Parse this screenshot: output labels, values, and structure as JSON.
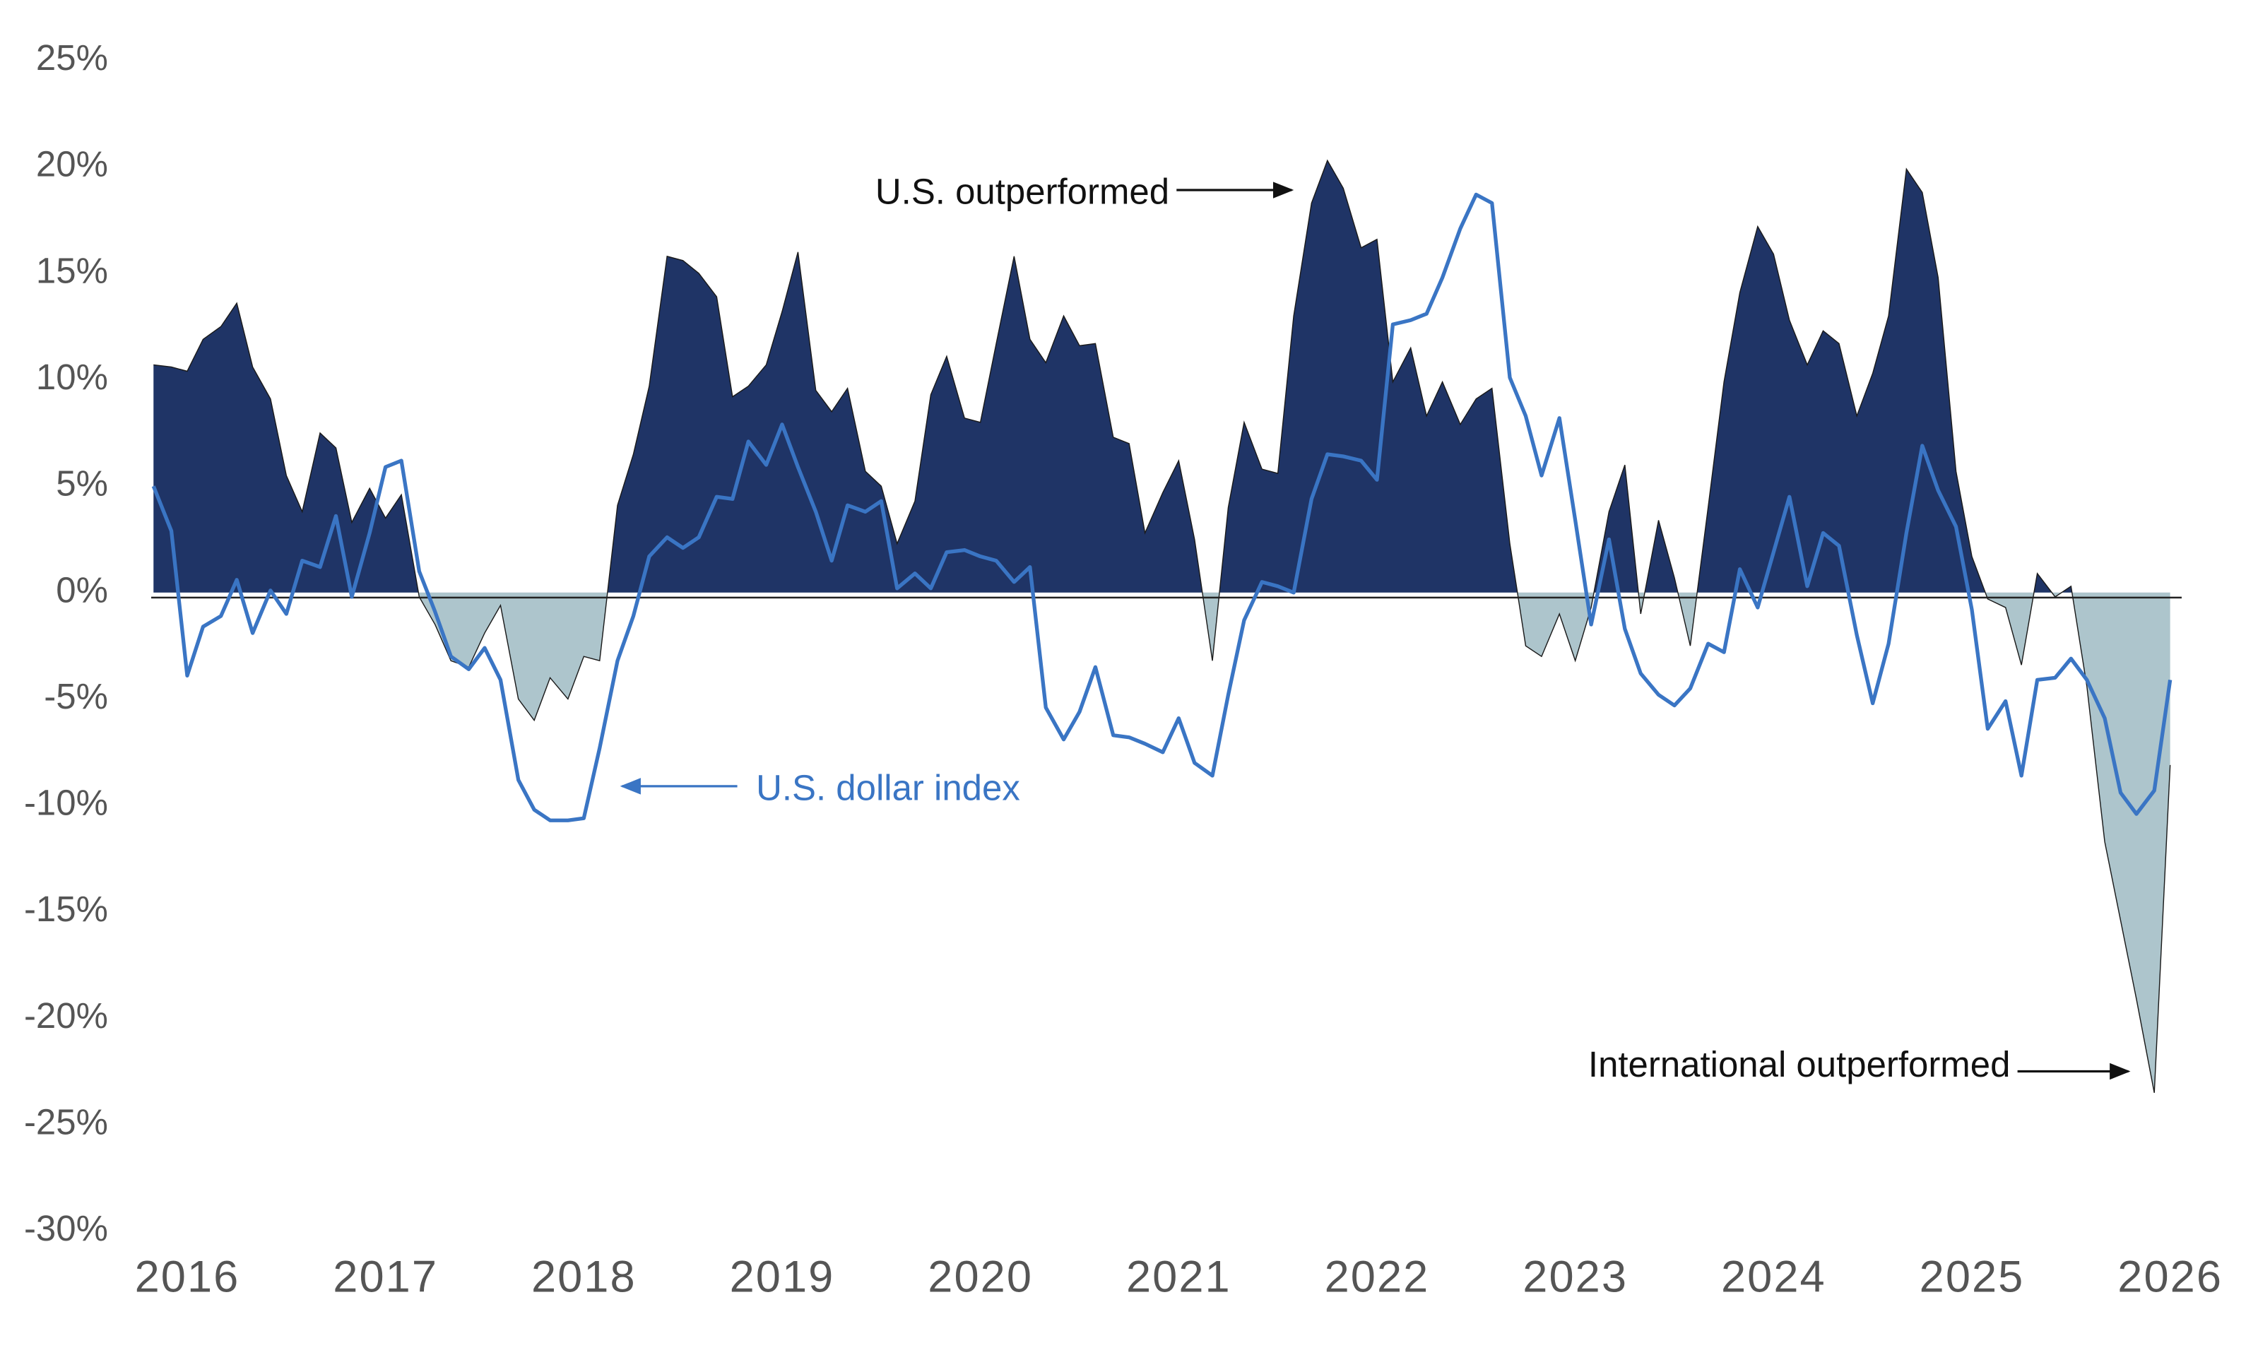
{
  "chart_data": {
    "type": "area",
    "x": [
      2015.83,
      2015.92,
      2016.0,
      2016.08,
      2016.17,
      2016.25,
      2016.33,
      2016.42,
      2016.5,
      2016.58,
      2016.67,
      2016.75,
      2016.83,
      2016.92,
      2017.0,
      2017.08,
      2017.17,
      2017.25,
      2017.33,
      2017.42,
      2017.5,
      2017.58,
      2017.67,
      2017.75,
      2017.83,
      2017.92,
      2018.0,
      2018.08,
      2018.17,
      2018.25,
      2018.33,
      2018.42,
      2018.5,
      2018.58,
      2018.67,
      2018.75,
      2018.83,
      2018.92,
      2019.0,
      2019.08,
      2019.17,
      2019.25,
      2019.33,
      2019.42,
      2019.5,
      2019.58,
      2019.67,
      2019.75,
      2019.83,
      2019.92,
      2020.0,
      2020.08,
      2020.17,
      2020.25,
      2020.33,
      2020.42,
      2020.5,
      2020.58,
      2020.67,
      2020.75,
      2020.83,
      2020.92,
      2021.0,
      2021.08,
      2021.17,
      2021.25,
      2021.33,
      2021.42,
      2021.5,
      2021.58,
      2021.67,
      2021.75,
      2021.83,
      2021.92,
      2022.0,
      2022.08,
      2022.17,
      2022.25,
      2022.33,
      2022.42,
      2022.5,
      2022.58,
      2022.67,
      2022.75,
      2022.83,
      2022.92,
      2023.0,
      2023.08,
      2023.17,
      2023.25,
      2023.33,
      2023.42,
      2023.5,
      2023.58,
      2023.67,
      2023.75,
      2023.83,
      2023.92,
      2024.0,
      2024.08,
      2024.17,
      2024.25,
      2024.33,
      2024.42,
      2024.5,
      2024.58,
      2024.67,
      2024.75,
      2024.83,
      2024.92,
      2025.0,
      2025.08,
      2025.17,
      2025.25,
      2025.33,
      2025.42,
      2025.5,
      2025.58,
      2025.67,
      2025.75,
      2025.83,
      2025.92,
      2026.0
    ],
    "series": [
      {
        "type": "area",
        "color": "#1f3466",
        "negative_color": "#adc5cc",
        "values": [
          10.7,
          10.6,
          10.4,
          11.9,
          12.5,
          13.6,
          10.6,
          9.1,
          5.5,
          3.8,
          7.5,
          6.8,
          3.3,
          4.9,
          3.5,
          4.6,
          -0.2,
          -1.5,
          -3.2,
          -3.5,
          -1.9,
          -0.6,
          -5.0,
          -6.0,
          -4.0,
          -5.0,
          -3.0,
          -3.2,
          4.1,
          6.5,
          9.7,
          15.8,
          15.6,
          15.0,
          13.9,
          9.2,
          9.7,
          10.7,
          13.2,
          16.0,
          9.5,
          8.5,
          9.6,
          5.7,
          5.0,
          2.3,
          4.3,
          9.3,
          11.1,
          8.2,
          8.0,
          11.7,
          15.8,
          11.9,
          10.8,
          13.0,
          11.6,
          11.7,
          7.3,
          7.0,
          2.8,
          4.7,
          6.2,
          2.5,
          -3.2,
          4.0,
          8.0,
          5.8,
          5.6,
          13.0,
          18.3,
          20.3,
          19.0,
          16.2,
          16.6,
          9.9,
          11.5,
          8.3,
          9.9,
          7.9,
          9.1,
          9.6,
          2.3,
          -2.5,
          -3.0,
          -1.0,
          -3.2,
          -0.7,
          3.8,
          6.0,
          -1.0,
          3.4,
          0.7,
          -2.5,
          4.0,
          9.9,
          14.1,
          17.2,
          15.9,
          12.8,
          10.7,
          12.3,
          11.7,
          8.3,
          10.3,
          13.0,
          19.9,
          18.8,
          14.8,
          5.7,
          1.7,
          -0.3,
          -0.7,
          -3.4,
          0.9,
          -0.2,
          0.3,
          -4.4,
          -11.7,
          -15.4,
          -19.1,
          -23.5,
          -8.1
        ]
      },
      {
        "type": "line",
        "name": "U.S. dollar index",
        "color": "#3a75c4",
        "values": [
          5.0,
          2.9,
          -3.9,
          -1.6,
          -1.1,
          0.6,
          -1.9,
          0.1,
          -1.0,
          1.5,
          1.2,
          3.6,
          -0.2,
          2.8,
          5.9,
          6.2,
          1.0,
          -0.9,
          -3.0,
          -3.6,
          -2.6,
          -4.1,
          -8.8,
          -10.2,
          -10.7,
          -10.7,
          -10.6,
          -7.3,
          -3.2,
          -1.1,
          1.7,
          2.6,
          2.1,
          2.6,
          4.5,
          4.4,
          7.1,
          6.0,
          7.9,
          5.9,
          3.8,
          1.5,
          4.1,
          3.8,
          4.3,
          0.2,
          0.9,
          0.2,
          1.9,
          2.0,
          1.7,
          1.5,
          0.5,
          1.2,
          -5.4,
          -6.9,
          -5.6,
          -3.5,
          -6.7,
          -6.8,
          -7.1,
          -7.5,
          -5.9,
          -8.0,
          -8.6,
          -4.8,
          -1.3,
          0.5,
          0.3,
          0.0,
          4.4,
          6.5,
          6.4,
          6.2,
          5.3,
          12.6,
          12.8,
          13.1,
          14.8,
          17.1,
          18.7,
          18.3,
          10.1,
          8.3,
          5.5,
          8.2,
          3.4,
          -1.5,
          2.5,
          -1.7,
          -3.8,
          -4.8,
          -5.3,
          -4.5,
          -2.4,
          -2.8,
          1.1,
          -0.7,
          1.9,
          4.5,
          0.3,
          2.8,
          2.2,
          -2.0,
          -5.2,
          -2.4,
          2.8,
          6.9,
          4.8,
          3.1,
          -0.8,
          -6.4,
          -5.1,
          -8.6,
          -4.1,
          -4.0,
          -3.1,
          -4.1,
          -5.9,
          -9.4,
          -10.4,
          -9.3,
          -4.1
        ]
      }
    ],
    "annotations": [
      "U.S. outperformed",
      "International outperformed"
    ],
    "xlim": [
      2015.84,
      2026.1
    ],
    "xticks": [
      2016,
      2017,
      2018,
      2019,
      2020,
      2021,
      2022,
      2023,
      2024,
      2025,
      2026
    ],
    "ylim": [
      -30,
      25
    ],
    "yticks": [
      {
        "value": 25,
        "label": "25%"
      },
      {
        "value": 20,
        "label": "20%"
      },
      {
        "value": 15,
        "label": "15%"
      },
      {
        "value": 10,
        "label": "10%"
      },
      {
        "value": 5,
        "label": "5%"
      },
      {
        "value": 0,
        "label": "0%"
      },
      {
        "value": -5,
        "label": "-5%"
      },
      {
        "value": -10,
        "label": "-10%"
      },
      {
        "value": -15,
        "label": "-15%"
      },
      {
        "value": -20,
        "label": "-20%"
      },
      {
        "value": -25,
        "label": "-25%"
      },
      {
        "value": -30,
        "label": "-30%"
      }
    ],
    "grid": false
  }
}
